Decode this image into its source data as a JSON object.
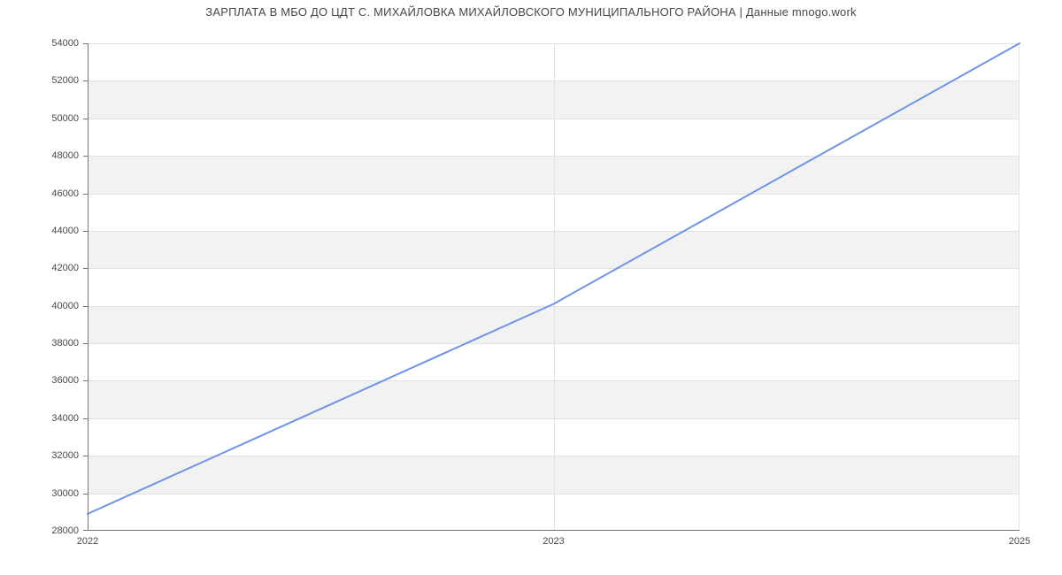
{
  "title": "ЗАРПЛАТА В МБО ДО ЦДТ С. МИХАЙЛОВКА МИХАЙЛОВСКОГО МУНИЦИПАЛЬНОГО РАЙОНА | Данные mnogo.work",
  "chart_data": {
    "type": "line",
    "title": "ЗАРПЛАТА В МБО ДО ЦДТ С. МИХАЙЛОВКА МИХАЙЛОВСКОГО МУНИЦИПАЛЬНОГО РАЙОНА | Данные mnogo.work",
    "x_tick_labels": [
      "2022",
      "2023",
      "2025"
    ],
    "x_positions": [
      0,
      0.5,
      1
    ],
    "values": [
      28900,
      40100,
      54000
    ],
    "xlabel": "",
    "ylabel": "",
    "ylim": [
      28000,
      54000
    ],
    "y_tick_step": 2000,
    "y_tick_labels": [
      "28000",
      "30000",
      "32000",
      "34000",
      "36000",
      "38000",
      "40000",
      "42000",
      "44000",
      "46000",
      "48000",
      "50000",
      "52000",
      "54000"
    ],
    "grid": "on",
    "legend": "none",
    "band_pattern": "alternating horizontal bands of 2000 starting white at 28000-30000"
  },
  "colors": {
    "line": "#6d94e8",
    "axis": "#757575",
    "gridline": "#e2e2e2",
    "band_odd": "#f2f2f2",
    "band_even": "#ffffff",
    "title_text": "#474747",
    "tick_text": "#484848",
    "background": "#ffffff"
  }
}
